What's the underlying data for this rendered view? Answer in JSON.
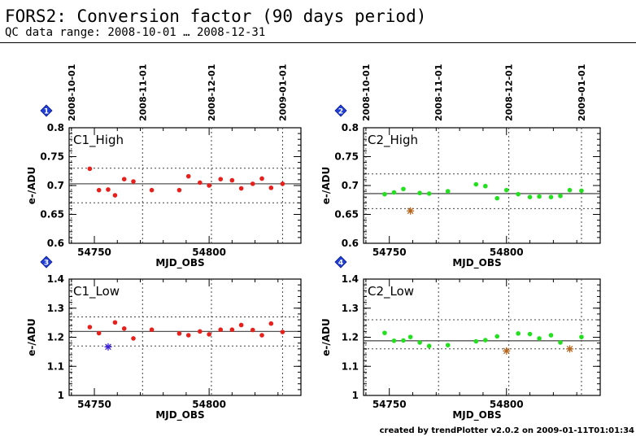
{
  "header": {
    "title": "FORS2: Conversion factor (90 days period)",
    "subtitle": "QC data range: 2008-10-01 … 2008-12-31"
  },
  "footer": {
    "text": "created by trendPlotter v2.0.2 on 2009-01-11T01:01:34"
  },
  "colors": {
    "star": "#b5651d",
    "star_blue": "#3a1fd8",
    "badge": "#1f3fd8",
    "guide": "#444444"
  },
  "chart_data": [
    {
      "type": "scatter",
      "badge": "1",
      "title": "C1_High",
      "xlabel": "MJD_OBS",
      "ylabel": "e-/ADU",
      "xlim": [
        54739,
        54840
      ],
      "ylim": [
        0.6,
        0.8
      ],
      "xticks": [
        "54750",
        "54800"
      ],
      "yticks": [
        "0.6",
        "0.65",
        "0.7",
        "0.75",
        "0.8"
      ],
      "date_ticks": [
        {
          "label": "2008-10-01",
          "mjd": 54740
        },
        {
          "label": "2008-11-01",
          "mjd": 54771
        },
        {
          "label": "2008-12-01",
          "mjd": 54801
        },
        {
          "label": "2009-01-01",
          "mjd": 54832
        }
      ],
      "mean": 0.703,
      "limits": [
        0.67,
        0.73
      ],
      "color": "#e8201c",
      "points": [
        {
          "x": 54748,
          "y": 0.729
        },
        {
          "x": 54752,
          "y": 0.692
        },
        {
          "x": 54756,
          "y": 0.693
        },
        {
          "x": 54759,
          "y": 0.683
        },
        {
          "x": 54763,
          "y": 0.711
        },
        {
          "x": 54767,
          "y": 0.707
        },
        {
          "x": 54775,
          "y": 0.692
        },
        {
          "x": 54787,
          "y": 0.692
        },
        {
          "x": 54791,
          "y": 0.716
        },
        {
          "x": 54796,
          "y": 0.705
        },
        {
          "x": 54800,
          "y": 0.7
        },
        {
          "x": 54805,
          "y": 0.711
        },
        {
          "x": 54810,
          "y": 0.709
        },
        {
          "x": 54814,
          "y": 0.695
        },
        {
          "x": 54819,
          "y": 0.703
        },
        {
          "x": 54823,
          "y": 0.712
        },
        {
          "x": 54827,
          "y": 0.696
        },
        {
          "x": 54832,
          "y": 0.703
        }
      ],
      "outliers": []
    },
    {
      "type": "scatter",
      "badge": "2",
      "title": "C2_High",
      "xlabel": "MJD_OBS",
      "ylabel": "e-/ADU",
      "xlim": [
        54739,
        54840
      ],
      "ylim": [
        0.6,
        0.8
      ],
      "xticks": [
        "54750",
        "54800"
      ],
      "yticks": [
        "0.6",
        "0.65",
        "0.7",
        "0.75",
        "0.8"
      ],
      "date_ticks": [
        {
          "label": "2008-10-01",
          "mjd": 54740
        },
        {
          "label": "2008-11-01",
          "mjd": 54771
        },
        {
          "label": "2008-12-01",
          "mjd": 54801
        },
        {
          "label": "2009-01-01",
          "mjd": 54832
        }
      ],
      "mean": 0.686,
      "limits": [
        0.66,
        0.72
      ],
      "color": "#22e01e",
      "points": [
        {
          "x": 54748,
          "y": 0.685
        },
        {
          "x": 54752,
          "y": 0.688
        },
        {
          "x": 54756,
          "y": 0.694
        },
        {
          "x": 54763,
          "y": 0.687
        },
        {
          "x": 54767,
          "y": 0.686
        },
        {
          "x": 54775,
          "y": 0.69
        },
        {
          "x": 54787,
          "y": 0.702
        },
        {
          "x": 54791,
          "y": 0.699
        },
        {
          "x": 54796,
          "y": 0.678
        },
        {
          "x": 54800,
          "y": 0.692
        },
        {
          "x": 54805,
          "y": 0.685
        },
        {
          "x": 54810,
          "y": 0.68
        },
        {
          "x": 54814,
          "y": 0.681
        },
        {
          "x": 54819,
          "y": 0.68
        },
        {
          "x": 54823,
          "y": 0.682
        },
        {
          "x": 54827,
          "y": 0.692
        },
        {
          "x": 54832,
          "y": 0.691
        }
      ],
      "outliers": [
        {
          "x": 54759,
          "y": 0.656,
          "color": "#b5651d"
        }
      ]
    },
    {
      "type": "scatter",
      "badge": "3",
      "title": "C1_Low",
      "xlabel": "MJD_OBS",
      "ylabel": "e-/ADU",
      "xlim": [
        54739,
        54840
      ],
      "ylim": [
        1.0,
        1.4
      ],
      "xticks": [
        "54750",
        "54800"
      ],
      "yticks": [
        "1",
        "1.1",
        "1.2",
        "1.3",
        "1.4"
      ],
      "date_ticks": [
        {
          "label": "2008-10-01",
          "mjd": 54740
        },
        {
          "label": "2008-11-01",
          "mjd": 54771
        },
        {
          "label": "2008-12-01",
          "mjd": 54801
        },
        {
          "label": "2009-01-01",
          "mjd": 54832
        }
      ],
      "mean": 1.22,
      "limits": [
        1.17,
        1.27
      ],
      "color": "#e8201c",
      "points": [
        {
          "x": 54748,
          "y": 1.235
        },
        {
          "x": 54752,
          "y": 1.214
        },
        {
          "x": 54759,
          "y": 1.251
        },
        {
          "x": 54763,
          "y": 1.23
        },
        {
          "x": 54767,
          "y": 1.196
        },
        {
          "x": 54775,
          "y": 1.226
        },
        {
          "x": 54787,
          "y": 1.213
        },
        {
          "x": 54791,
          "y": 1.207
        },
        {
          "x": 54796,
          "y": 1.22
        },
        {
          "x": 54800,
          "y": 1.21
        },
        {
          "x": 54805,
          "y": 1.226
        },
        {
          "x": 54810,
          "y": 1.226
        },
        {
          "x": 54814,
          "y": 1.242
        },
        {
          "x": 54819,
          "y": 1.225
        },
        {
          "x": 54823,
          "y": 1.207
        },
        {
          "x": 54827,
          "y": 1.247
        },
        {
          "x": 54832,
          "y": 1.218
        }
      ],
      "outliers": [
        {
          "x": 54756,
          "y": 1.167,
          "color": "#3a1fd8"
        }
      ]
    },
    {
      "type": "scatter",
      "badge": "4",
      "title": "C2_Low",
      "xlabel": "MJD_OBS",
      "ylabel": "e-/ADU",
      "xlim": [
        54739,
        54840
      ],
      "ylim": [
        1.0,
        1.4
      ],
      "xticks": [
        "54750",
        "54800"
      ],
      "yticks": [
        "1",
        "1.1",
        "1.2",
        "1.3",
        "1.4"
      ],
      "date_ticks": [
        {
          "label": "2008-10-01",
          "mjd": 54740
        },
        {
          "label": "2008-11-01",
          "mjd": 54771
        },
        {
          "label": "2008-12-01",
          "mjd": 54801
        },
        {
          "label": "2009-01-01",
          "mjd": 54832
        }
      ],
      "mean": 1.188,
      "limits": [
        1.16,
        1.26
      ],
      "color": "#22e01e",
      "points": [
        {
          "x": 54748,
          "y": 1.215
        },
        {
          "x": 54752,
          "y": 1.188
        },
        {
          "x": 54756,
          "y": 1.189
        },
        {
          "x": 54759,
          "y": 1.201
        },
        {
          "x": 54763,
          "y": 1.182
        },
        {
          "x": 54767,
          "y": 1.17
        },
        {
          "x": 54775,
          "y": 1.173
        },
        {
          "x": 54787,
          "y": 1.186
        },
        {
          "x": 54791,
          "y": 1.19
        },
        {
          "x": 54796,
          "y": 1.203
        },
        {
          "x": 54805,
          "y": 1.213
        },
        {
          "x": 54810,
          "y": 1.211
        },
        {
          "x": 54814,
          "y": 1.196
        },
        {
          "x": 54819,
          "y": 1.207
        },
        {
          "x": 54823,
          "y": 1.182
        },
        {
          "x": 54832,
          "y": 1.201
        }
      ],
      "outliers": [
        {
          "x": 54800,
          "y": 1.153,
          "color": "#b5651d"
        },
        {
          "x": 54827,
          "y": 1.16,
          "color": "#b5651d"
        }
      ]
    }
  ]
}
